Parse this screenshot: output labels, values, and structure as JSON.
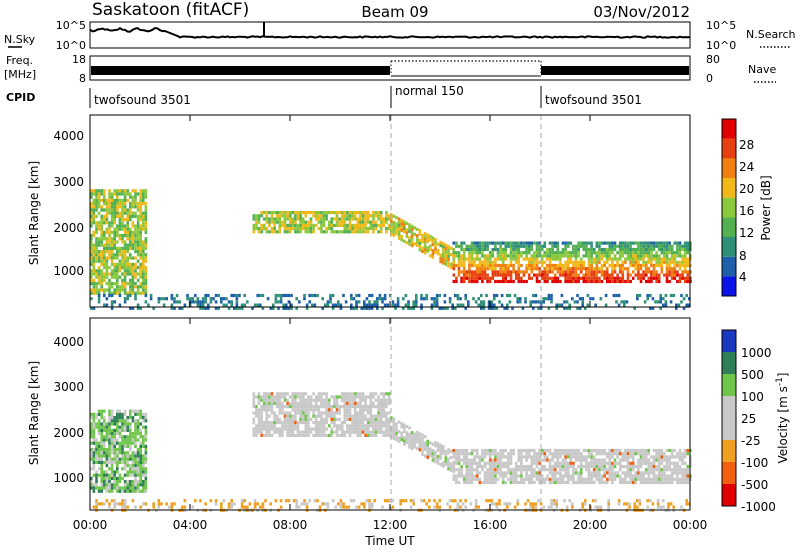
{
  "header": {
    "station": "Saskatoon (fitACF)",
    "beam": "Beam 09",
    "date": "03/Nov/2012"
  },
  "noise_panel": {
    "left_label": "N.Sky",
    "right_label": "N.Search",
    "left_ticks": [
      "10^5",
      "10^0"
    ],
    "right_ticks": [
      "10^5",
      "10^0"
    ]
  },
  "freq_panel": {
    "left_label_line1": "Freq.",
    "left_label_line2": "[MHz]",
    "left_ticks": [
      "18",
      "8"
    ],
    "right_ticks": [
      "80",
      "0"
    ],
    "right_label": "Nave"
  },
  "cpid_panel": {
    "label": "CPID",
    "segments": [
      {
        "name": "twofsound 3501",
        "start_hour": 0,
        "end_hour": 12
      },
      {
        "name": "normal 150",
        "start_hour": 12,
        "end_hour": 18
      },
      {
        "name": "twofsound 3501",
        "start_hour": 18,
        "end_hour": 24
      }
    ]
  },
  "x_axis": {
    "label": "Time UT",
    "ticks": [
      "00:00",
      "04:00",
      "08:00",
      "12:00",
      "16:00",
      "20:00",
      "00:00"
    ]
  },
  "chart_data": [
    {
      "type": "heatmap",
      "panel": "power",
      "ylabel": "Slant Range [km]",
      "y_ticks": [
        "1000",
        "2000",
        "3000",
        "4000"
      ],
      "ylim": [
        200,
        4600
      ],
      "xlim": [
        0,
        24
      ],
      "colorbar_label": "Power [dB]",
      "colorbar_ticks": [
        "4",
        "8",
        "12",
        "16",
        "20",
        "24",
        "28"
      ],
      "colorbar_range": [
        0,
        32
      ],
      "colormap": [
        "#0a14e6",
        "#1d5fa8",
        "#2f8f78",
        "#52b050",
        "#8cc83c",
        "#f0b818",
        "#f08010",
        "#e64010",
        "#e00000"
      ],
      "echo_regions": [
        {
          "t_start": 0.0,
          "t_end": 2.2,
          "range_min": 500,
          "range_max": 2900,
          "value": 16
        },
        {
          "t_start": 6.5,
          "t_end": 12.0,
          "range_min": 1900,
          "range_max": 2400,
          "value": 17
        },
        {
          "t_start": 12.0,
          "t_end": 14.5,
          "range_min": 1400,
          "range_max": 2300,
          "value": 18
        },
        {
          "t_start": 14.5,
          "t_end": 24.0,
          "range_min": 800,
          "range_max": 1700,
          "value": 24
        },
        {
          "t_start": 0.0,
          "t_end": 24.0,
          "range_min": 200,
          "range_max": 500,
          "value": 6
        }
      ]
    },
    {
      "type": "heatmap",
      "panel": "velocity",
      "ylabel": "Slant Range [km]",
      "y_ticks": [
        "1000",
        "2000",
        "3000",
        "4000"
      ],
      "ylim": [
        200,
        4600
      ],
      "xlim": [
        0,
        24
      ],
      "colorbar_label": "Velocity [m s^-1]",
      "colorbar_ticks": [
        "1000",
        "500",
        "100",
        "25",
        "-25",
        "-100",
        "-500",
        "-1000"
      ],
      "colormap": [
        "#1838c0",
        "#2e7e58",
        "#6fc64a",
        "#c8c8c8",
        "#c8c8c8",
        "#f0a020",
        "#f06010",
        "#e00000"
      ],
      "echo_regions": [
        {
          "t_start": 0.0,
          "t_end": 2.2,
          "range_min": 600,
          "range_max": 2500,
          "value": 100
        },
        {
          "t_start": 6.5,
          "t_end": 12.0,
          "range_min": 1900,
          "range_max": 2900,
          "value": 0
        },
        {
          "t_start": 12.0,
          "t_end": 14.5,
          "range_min": 1500,
          "range_max": 2300,
          "value": 0
        },
        {
          "t_start": 14.5,
          "t_end": 24.0,
          "range_min": 800,
          "range_max": 1600,
          "value": 0
        },
        {
          "t_start": 0.0,
          "t_end": 24.0,
          "range_min": 200,
          "range_max": 450,
          "value": -100
        }
      ]
    }
  ]
}
